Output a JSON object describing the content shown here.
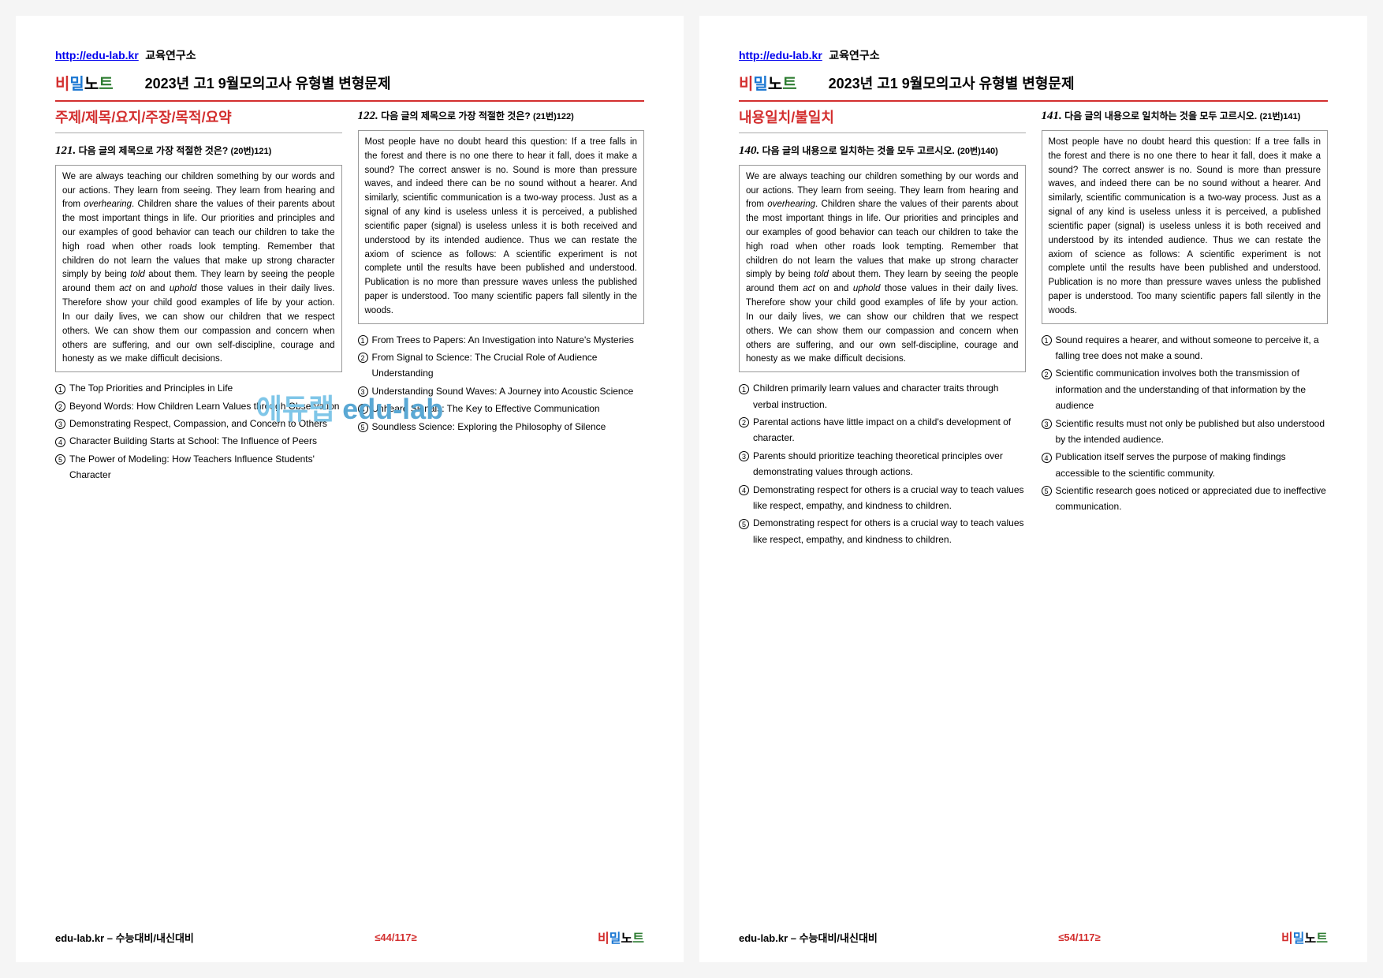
{
  "header": {
    "link_text": "http://edu-lab.kr",
    "org_text": "교육연구소",
    "logo_parts": [
      "비",
      "밀",
      "노",
      "트"
    ],
    "doc_title": "2023년 고1 9월모의고사 유형별 변형문제"
  },
  "watermark": {
    "part1": "에듀랩",
    "part2": "edu-lab"
  },
  "footer": {
    "left": "edu-lab.kr – 수능대비/내신대비",
    "logo_parts": [
      "비",
      "밀",
      "노",
      "트"
    ]
  },
  "page1": {
    "section_title": "주제/제목/요지/주장/목적/요약",
    "page_mid": "≤44/117≥",
    "q121": {
      "num": "121.",
      "text": "다음 글의 제목으로 가장 적절한 것은?",
      "ref": "(20번)121)",
      "passage": "We are always teaching our children something by our words and our actions. They learn from seeing. They learn from hearing and from <em>overhearing</em>. Children share the values of their parents about the most important things in life. Our priorities and principles and our examples of good behavior can teach our children to take the high road when other roads look tempting. Remember that children do not learn the values that make up strong character simply by being <em>told</em> about them. They learn by seeing the people around them <em>act</em> on and <em>uphold</em> those values in their daily lives. Therefore show your child good examples of life by your action. In our daily lives, we can show our children that we respect others. We can show them our compassion and concern when others are suffering, and our own self-discipline, courage and honesty as we make difficult decisions.",
      "options": [
        "The Top Priorities and Principles in Life",
        "Beyond Words: How Children Learn Values through Observation",
        "Demonstrating Respect, Compassion, and Concern to Others",
        "Character Building Starts at School: The Influence of Peers",
        "The Power of Modeling: How Teachers Influence Students' Character"
      ]
    },
    "q122": {
      "num": "122.",
      "text": "다음 글의 제목으로 가장 적절한 것은?",
      "ref": "(21번)122)",
      "passage": "Most people have no doubt heard this question: If a tree falls in the forest and there is no one there to hear it fall, does it make a sound? The correct answer is no. Sound is more than pressure waves, and indeed there can be no sound without a hearer. And similarly, scientific communication is a two-way process. Just as a signal of any kind is useless unless it is perceived, a published scientific paper (signal) is useless unless it is both received and understood by its intended audience. Thus we can restate the axiom of science as follows: A scientific experiment is not complete until the results have been published and understood. Publication is no more than pressure waves unless the published paper is understood. Too many scientific papers fall silently in the woods.",
      "options": [
        "From Trees to Papers: An Investigation into Nature's Mysteries",
        "From Signal to Science: The Crucial Role of Audience Understanding",
        "Understanding Sound Waves: A Journey into Acoustic Science",
        "Unheard Signals: The Key to Effective Communication",
        "Soundless Science: Exploring the Philosophy of Silence"
      ]
    }
  },
  "page2": {
    "section_title": "내용일치/불일치",
    "page_mid": "≤54/117≥",
    "q140": {
      "num": "140.",
      "text": "다음 글의 내용으로 일치하는 것을 모두 고르시오.",
      "ref": "(20번)140)",
      "passage": "We are always teaching our children something by our words and our actions. They learn from seeing. They learn from hearing and from <em>overhearing</em>. Children share the values of their parents about the most important things in life. Our priorities and principles and our examples of good behavior can teach our children to take the high road when other roads look tempting. Remember that children do not learn the values that make up strong character simply by being <em>told</em> about them. They learn by seeing the people around them <em>act</em> on and <em>uphold</em> those values in their daily lives. Therefore show your child good examples of life by your action. In our daily lives, we can show our children that we respect others. We can show them our compassion and concern when others are suffering, and our own self-discipline, courage and honesty as we make difficult decisions.",
      "options": [
        "Children primarily learn values and character traits through verbal instruction.",
        "Parental actions have little impact on a child's development of character.",
        " Parents should prioritize teaching theoretical principles over demonstrating values through actions.",
        "Demonstrating respect for others is a crucial way to teach values like respect, empathy, and kindness to children.",
        "Demonstrating respect for others is a crucial way to teach values like respect, empathy, and kindness to children."
      ]
    },
    "q141": {
      "num": "141.",
      "text": "다음 글의 내용으로 일치하는 것을 모두 고르시오.",
      "ref": "(21번)141)",
      "passage": "Most people have no doubt heard this question: If a tree falls in the forest and there is no one there to hear it fall, does it make a sound? The correct answer is no. Sound is more than pressure waves, and indeed there can be no sound without a hearer. And similarly, scientific communication is a two-way process. Just as a signal of any kind is useless unless it is perceived, a published scientific paper (signal) is useless unless it is both received and understood by its intended audience. Thus we can restate the axiom of science as follows: A scientific experiment is not complete until the results have been published and understood. Publication is no more than pressure waves unless the published paper is understood. Too many scientific papers fall silently in the woods.",
      "options": [
        "Sound requires a hearer, and without someone to perceive it, a falling tree does not make a sound.",
        "Scientific communication involves both the transmission of information and the understanding of that information by the audience",
        "Scientific results must not only be published but also understood by the intended audience.",
        " Publication itself serves the purpose of making findings accessible to the scientific community.",
        "Scientific research goes noticed or appreciated due to ineffective communication."
      ]
    }
  }
}
